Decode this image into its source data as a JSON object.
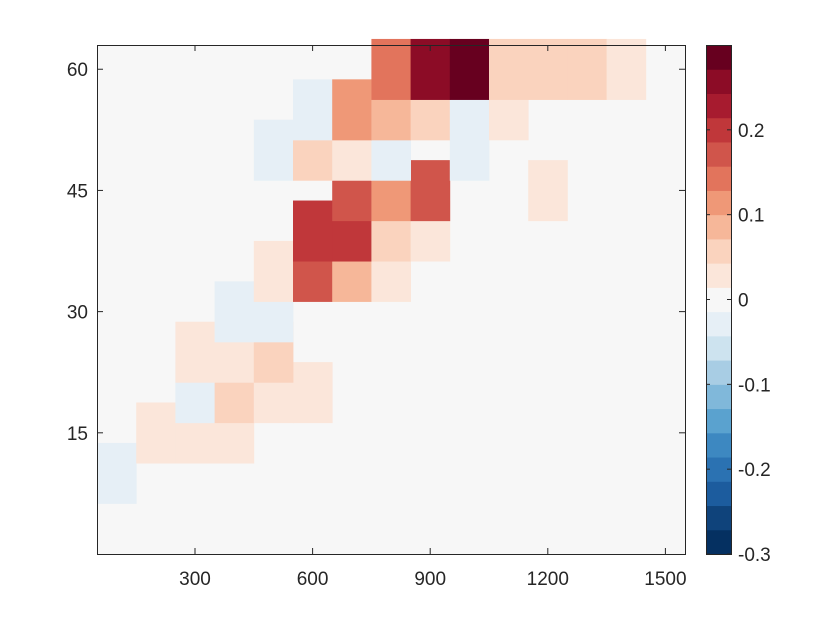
{
  "chart_data": {
    "type": "heatmap",
    "title": "",
    "xlabel": "",
    "ylabel": "",
    "xlim": [
      50,
      1550
    ],
    "ylim": [
      0,
      63
    ],
    "x_ticks": [
      300,
      600,
      900,
      1200,
      1500
    ],
    "x_tick_labels": [
      "300",
      "600",
      "900",
      "1200",
      "1500"
    ],
    "y_ticks": [
      15,
      30,
      45,
      60
    ],
    "y_tick_labels": [
      "15",
      "30",
      "45",
      "60"
    ],
    "cell_width": 100,
    "cell_height": 7.5,
    "background_value": 0,
    "cells": [
      {
        "x": 100,
        "y": 10,
        "value": -0.04
      },
      {
        "x": 200,
        "y": 15,
        "value": 0.02
      },
      {
        "x": 300,
        "y": 15,
        "value": 0.02
      },
      {
        "x": 400,
        "y": 15,
        "value": 0.02
      },
      {
        "x": 300,
        "y": 20,
        "value": -0.02
      },
      {
        "x": 400,
        "y": 20,
        "value": 0.06
      },
      {
        "x": 500,
        "y": 20,
        "value": 0.02
      },
      {
        "x": 600,
        "y": 20,
        "value": 0.02
      },
      {
        "x": 300,
        "y": 25,
        "value": 0.02
      },
      {
        "x": 400,
        "y": 25,
        "value": 0.02
      },
      {
        "x": 500,
        "y": 25,
        "value": 0.06
      },
      {
        "x": 400,
        "y": 30,
        "value": -0.02
      },
      {
        "x": 500,
        "y": 30,
        "value": -0.02
      },
      {
        "x": 500,
        "y": 35,
        "value": 0.02
      },
      {
        "x": 600,
        "y": 35,
        "value": 0.18
      },
      {
        "x": 700,
        "y": 35,
        "value": 0.09
      },
      {
        "x": 800,
        "y": 35,
        "value": 0.02
      },
      {
        "x": 600,
        "y": 40,
        "value": 0.21
      },
      {
        "x": 700,
        "y": 40,
        "value": 0.21
      },
      {
        "x": 800,
        "y": 40,
        "value": 0.05
      },
      {
        "x": 900,
        "y": 40,
        "value": 0.02
      },
      {
        "x": 700,
        "y": 45,
        "value": 0.18
      },
      {
        "x": 800,
        "y": 45,
        "value": 0.12
      },
      {
        "x": 900,
        "y": 45,
        "value": 0.18
      },
      {
        "x": 1200,
        "y": 45,
        "value": 0.02
      },
      {
        "x": 500,
        "y": 50,
        "value": -0.02
      },
      {
        "x": 600,
        "y": 50,
        "value": 0.05
      },
      {
        "x": 700,
        "y": 50,
        "value": 0.02
      },
      {
        "x": 800,
        "y": 50,
        "value": -0.02
      },
      {
        "x": 1000,
        "y": 50,
        "value": -0.02
      },
      {
        "x": 600,
        "y": 55,
        "value": -0.04
      },
      {
        "x": 700,
        "y": 55,
        "value": 0.12
      },
      {
        "x": 800,
        "y": 55,
        "value": 0.09
      },
      {
        "x": 900,
        "y": 55,
        "value": 0.05
      },
      {
        "x": 1000,
        "y": 55,
        "value": -0.02
      },
      {
        "x": 1100,
        "y": 55,
        "value": 0.02
      },
      {
        "x": 800,
        "y": 60,
        "value": 0.15
      },
      {
        "x": 900,
        "y": 60,
        "value": 0.26
      },
      {
        "x": 1000,
        "y": 60,
        "value": 0.3
      },
      {
        "x": 1100,
        "y": 60,
        "value": 0.05
      },
      {
        "x": 1200,
        "y": 60,
        "value": 0.05
      },
      {
        "x": 1300,
        "y": 60,
        "value": 0.05
      },
      {
        "x": 1400,
        "y": 60,
        "value": 0.02
      }
    ],
    "colorbar": {
      "range": [
        -0.3,
        0.3
      ],
      "ticks": [
        -0.3,
        -0.2,
        -0.1,
        0,
        0.1,
        0.2
      ],
      "tick_labels": [
        "-0.3",
        "-0.2",
        "-0.1",
        "0",
        "0.1",
        "0.2"
      ],
      "colors": [
        "#053061",
        "#0f437b",
        "#1c5c9e",
        "#2b72b2",
        "#3d88c1",
        "#5aa2cf",
        "#80b8da",
        "#a8cde4",
        "#cde3ef",
        "#e6eff6",
        "#f7f7f7",
        "#fbe6da",
        "#fad3be",
        "#f6b799",
        "#ef9877",
        "#e2745c",
        "#d0554b",
        "#c0373a",
        "#a71b2f",
        "#8c0c26",
        "#67001f"
      ]
    }
  }
}
